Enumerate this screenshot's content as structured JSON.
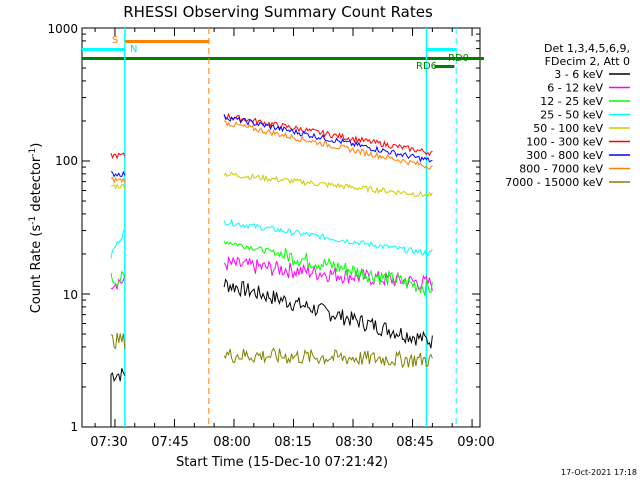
{
  "chart_data": {
    "type": "line",
    "title": "RHESSI Observing Summary Count Rates",
    "xlabel": "Start Time (15-Dec-10 07:21:42)",
    "ylabel": "Count Rate (s",
    "ylabel_sup1": "-1",
    "ylabel_mid": " detector",
    "ylabel_sup2": "-1",
    "ylabel_end": ")",
    "yscale": "log",
    "ylim": [
      1,
      1000
    ],
    "xlim": [
      "07:21:42",
      "09:02:00"
    ],
    "xticks": [
      "07:30",
      "07:45",
      "08:00",
      "08:15",
      "08:30",
      "08:45",
      "09:00"
    ],
    "yticks": [
      "1",
      "10",
      "100",
      "1000"
    ],
    "timestamp": "17-Oct-2021 17:18",
    "legend": {
      "header1": "Det 1,3,4,5,6,9,",
      "header2": "FDecim 2, Att 0",
      "entries": [
        {
          "label": "3 - 6 keV",
          "color": "#000000"
        },
        {
          "label": "6 - 12 keV",
          "color": "#ff00ff"
        },
        {
          "label": "12 - 25 keV",
          "color": "#00ff00"
        },
        {
          "label": "25 - 50 keV",
          "color": "#00ffff"
        },
        {
          "label": "50 - 100 keV",
          "color": "#cccc00"
        },
        {
          "label": "100 - 300 keV",
          "color": "#ff0000"
        },
        {
          "label": "300 - 800 keV",
          "color": "#0000ff"
        },
        {
          "label": "800 - 7000 keV",
          "color": "#ff8000"
        },
        {
          "label": "7000 - 15000 keV",
          "color": "#808000"
        }
      ]
    },
    "flags": {
      "saa_label": "S",
      "night_label": "N",
      "rd0_label": "RD0",
      "rd6_label": "RD6"
    },
    "series": [
      {
        "name": "3 - 6 keV",
        "color": "#000000",
        "seg1": [
          2.5,
          2.5
        ],
        "seg2": [
          12,
          4.4
        ]
      },
      {
        "name": "6 - 12 keV",
        "color": "#ff00ff",
        "seg1": [
          12.5,
          12.5
        ],
        "seg2": [
          17,
          12
        ]
      },
      {
        "name": "12 - 25 keV",
        "color": "#00ff00",
        "seg1": [
          13,
          13
        ],
        "seg2": [
          25,
          11
        ]
      },
      {
        "name": "25 - 50 keV",
        "color": "#00ffff",
        "seg1": [
          20,
          30
        ],
        "seg2": [
          35,
          20
        ]
      },
      {
        "name": "50 - 100 keV",
        "color": "#cccc00",
        "seg1": [
          65,
          65
        ],
        "seg2": [
          80,
          55
        ]
      },
      {
        "name": "100 - 300 keV",
        "color": "#ff0000",
        "seg1": [
          110,
          110
        ],
        "seg2": [
          220,
          115
        ]
      },
      {
        "name": "300 - 800 keV",
        "color": "#0000ff",
        "seg1": [
          80,
          80
        ],
        "seg2": [
          215,
          100
        ]
      },
      {
        "name": "800 - 7000 keV",
        "color": "#ff8000",
        "seg1": [
          72,
          72
        ],
        "seg2": [
          195,
          90
        ]
      },
      {
        "name": "7000 - 15000 keV",
        "color": "#808000",
        "seg1": [
          4.5,
          4.5
        ],
        "seg2": [
          3.5,
          3.2
        ]
      }
    ]
  }
}
